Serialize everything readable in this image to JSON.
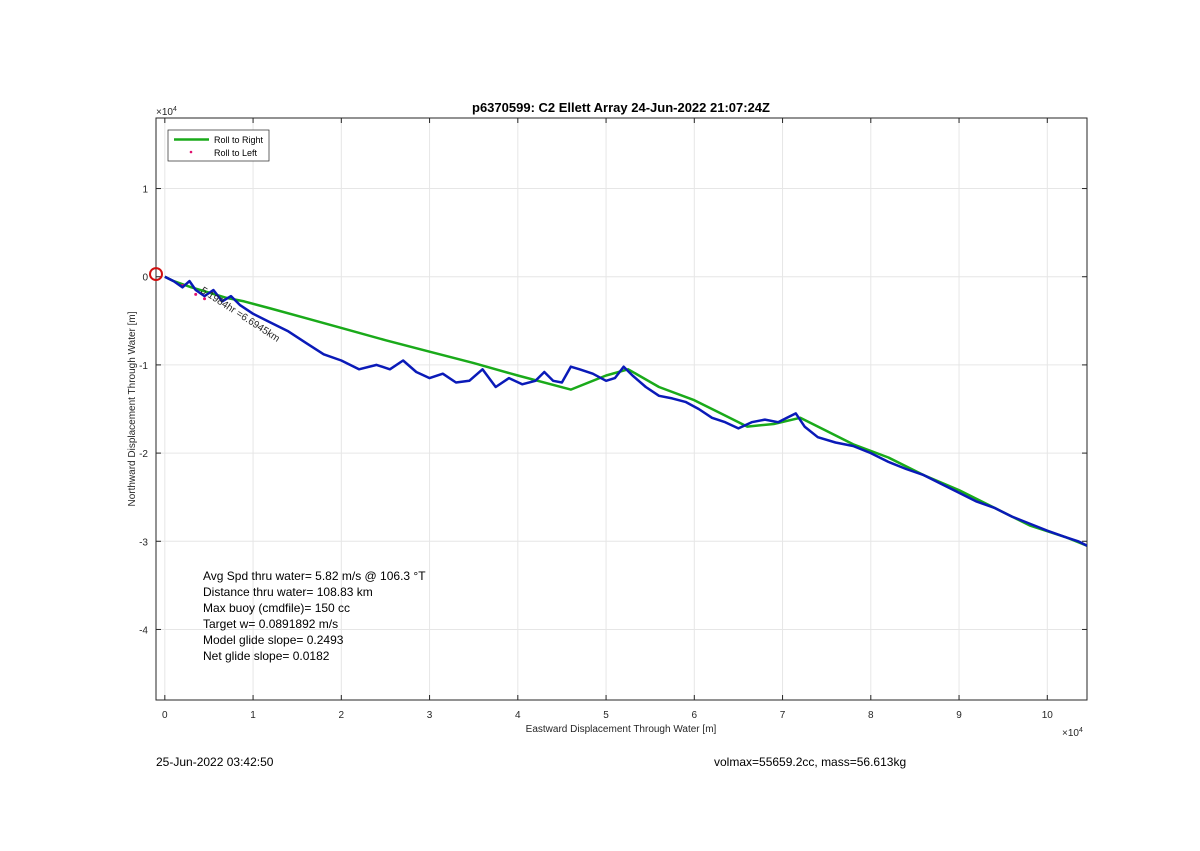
{
  "footer": {
    "timestamp": "25-Jun-2022 03:42:50",
    "volmax_mass": "volmax=55659.2cc, mass=56.613kg"
  },
  "stats": [
    "Avg Spd thru water=  5.82 m/s @ 106.3 °T",
    "Distance thru water= 108.83 km",
    "Max buoy (cmdfile)= 150 cc",
    "Target w= 0.0891892 m/s",
    "Model glide slope= 0.2493",
    "Net glide slope= 0.0182"
  ],
  "annotation": "5.1984hr =6.6945km",
  "colors": {
    "roll_right": "#1aaa1a",
    "roll_left": "#e0106e",
    "track": "#0a1ab8",
    "start_marker": "#d01010",
    "grid": "#e6e6e6"
  },
  "chart_data": {
    "type": "line",
    "title": "p6370599: C2 Ellett Array 24-Jun-2022 21:07:24Z",
    "xlabel": "Eastward Displacement Through Water [m]",
    "ylabel": "Northward Displacement Through Water [m]",
    "x_exponent": "×10^4",
    "y_exponent": "×10^4",
    "xlim": [
      -0.1,
      10.45
    ],
    "ylim": [
      -4.8,
      1.8
    ],
    "xticks": [
      "0",
      "1",
      "2",
      "3",
      "4",
      "5",
      "6",
      "7",
      "8",
      "9",
      "10"
    ],
    "yticks": [
      "1",
      "0",
      "-1",
      "-2",
      "-3",
      "-4"
    ],
    "grid": true,
    "legend_position": "top-left",
    "legend": [
      "Roll to Right",
      "Roll to Left"
    ],
    "start_point": [
      -0.1,
      0.03
    ],
    "series": [
      {
        "name": "Roll to Right",
        "style": "line",
        "x": [
          0,
          0.1,
          0.3,
          0.5,
          0.7,
          0.9,
          1.2,
          1.6,
          2.0,
          2.5,
          3.0,
          3.5,
          4.0,
          4.6,
          5.0,
          5.25,
          5.6,
          6.0,
          6.3,
          6.6,
          6.9,
          7.2,
          7.5,
          7.8,
          8.2,
          8.6,
          9.0,
          9.4,
          9.8,
          10.2,
          10.45
        ],
        "y": [
          0.0,
          -0.05,
          -0.12,
          -0.18,
          -0.24,
          -0.28,
          -0.36,
          -0.47,
          -0.58,
          -0.72,
          -0.85,
          -0.98,
          -1.12,
          -1.28,
          -1.12,
          -1.05,
          -1.25,
          -1.4,
          -1.55,
          -1.7,
          -1.67,
          -1.6,
          -1.75,
          -1.9,
          -2.05,
          -2.25,
          -2.42,
          -2.62,
          -2.82,
          -2.95,
          -3.05
        ]
      },
      {
        "name": "Roll to Left",
        "style": "marker",
        "x": [
          0.2,
          0.35,
          0.45
        ],
        "y": [
          -0.1,
          -0.2,
          -0.25
        ]
      },
      {
        "name": "Track",
        "style": "line",
        "x": [
          0,
          0.1,
          0.2,
          0.28,
          0.35,
          0.45,
          0.55,
          0.65,
          0.75,
          0.85,
          1.0,
          1.2,
          1.4,
          1.6,
          1.8,
          2.0,
          2.2,
          2.4,
          2.55,
          2.7,
          2.85,
          3.0,
          3.15,
          3.3,
          3.45,
          3.6,
          3.75,
          3.9,
          4.05,
          4.2,
          4.3,
          4.4,
          4.5,
          4.6,
          4.7,
          4.85,
          5.0,
          5.1,
          5.2,
          5.3,
          5.45,
          5.6,
          5.75,
          5.9,
          6.05,
          6.2,
          6.35,
          6.5,
          6.65,
          6.8,
          6.95,
          7.05,
          7.15,
          7.25,
          7.4,
          7.6,
          7.8,
          8.0,
          8.2,
          8.4,
          8.6,
          8.8,
          9.0,
          9.2,
          9.4,
          9.6,
          9.8,
          10.0,
          10.2,
          10.35,
          10.45
        ],
        "y": [
          0.0,
          -0.05,
          -0.12,
          -0.05,
          -0.15,
          -0.22,
          -0.15,
          -0.28,
          -0.22,
          -0.32,
          -0.42,
          -0.52,
          -0.62,
          -0.75,
          -0.88,
          -0.95,
          -1.05,
          -1.0,
          -1.05,
          -0.95,
          -1.08,
          -1.15,
          -1.1,
          -1.2,
          -1.18,
          -1.05,
          -1.25,
          -1.15,
          -1.22,
          -1.18,
          -1.08,
          -1.18,
          -1.2,
          -1.02,
          -1.05,
          -1.1,
          -1.18,
          -1.15,
          -1.02,
          -1.12,
          -1.25,
          -1.35,
          -1.38,
          -1.42,
          -1.5,
          -1.6,
          -1.65,
          -1.72,
          -1.65,
          -1.62,
          -1.65,
          -1.6,
          -1.55,
          -1.7,
          -1.82,
          -1.88,
          -1.92,
          -2.0,
          -2.1,
          -2.18,
          -2.25,
          -2.35,
          -2.45,
          -2.55,
          -2.62,
          -2.72,
          -2.8,
          -2.88,
          -2.95,
          -3.0,
          -3.05
        ]
      }
    ]
  }
}
